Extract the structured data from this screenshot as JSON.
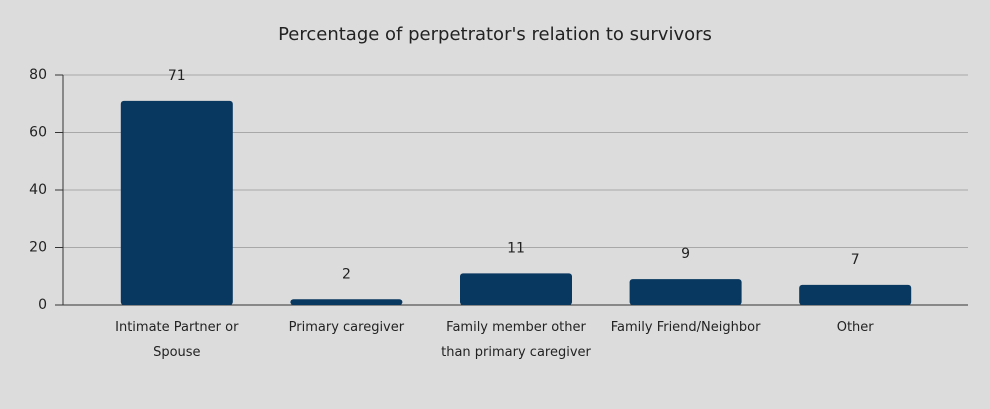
{
  "chart_data": {
    "type": "bar",
    "title": "Percentage of perpetrator's relation to survivors",
    "categories": [
      "Intimate Partner or Spouse",
      "Primary caregiver",
      "Family member other than primary caregiver",
      "Family Friend/Neighbor",
      "Other"
    ],
    "values": [
      71,
      2,
      11,
      9,
      7
    ],
    "color": "#08375f",
    "ylim": [
      0,
      80
    ],
    "yticks": [
      0,
      20,
      40,
      60,
      80
    ],
    "grid": true
  }
}
